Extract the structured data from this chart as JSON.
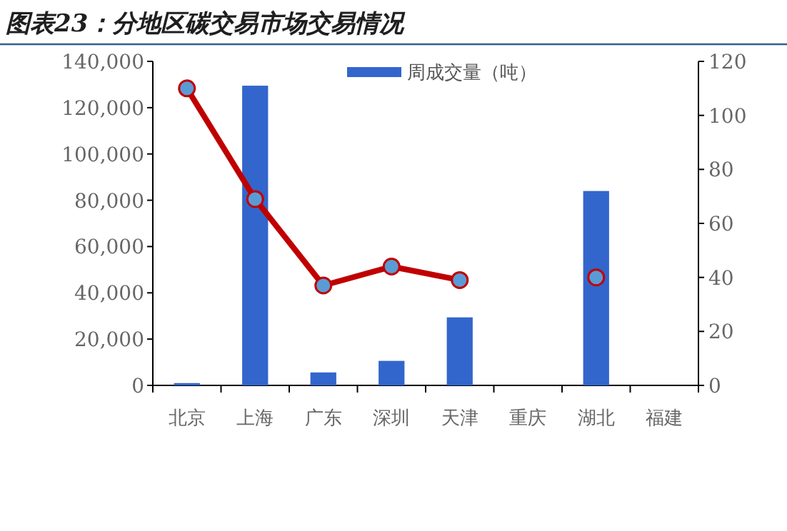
{
  "chart_data": {
    "type": "bar",
    "title": "图表23：分地区碳交易市场交易情况",
    "categories": [
      "北京",
      "上海",
      "广东",
      "深圳",
      "天津",
      "重庆",
      "湖北",
      "福建"
    ],
    "series": [
      {
        "name": "周成交量（吨）",
        "color": "#3366cc",
        "values": [
          1000,
          129500,
          5600,
          10600,
          29400,
          null,
          84000,
          null
        ]
      },
      {
        "type": "line",
        "axis": "y2",
        "color": "#c00000",
        "values": [
          110,
          69,
          37,
          44,
          39,
          null,
          40,
          null
        ]
      }
    ],
    "ylim": [
      0,
      140000
    ],
    "yticks": [
      0,
      {
        "value": 20000,
        "label": "20,000"
      },
      {
        "value": 40000,
        "label": "40,000"
      },
      {
        "value": 60000,
        "label": "60,000"
      },
      {
        "value": 80000,
        "label": "80,000"
      },
      {
        "value": 100000,
        "label": "100,000"
      },
      {
        "value": 120000,
        "label": "120,000"
      },
      {
        "value": 140000,
        "label": "140,000"
      }
    ],
    "y2lim": [
      0,
      120
    ],
    "y2ticks": [
      0,
      20,
      40,
      60,
      80,
      100,
      120
    ],
    "legend": "top",
    "marker": "circle",
    "grid": false
  }
}
